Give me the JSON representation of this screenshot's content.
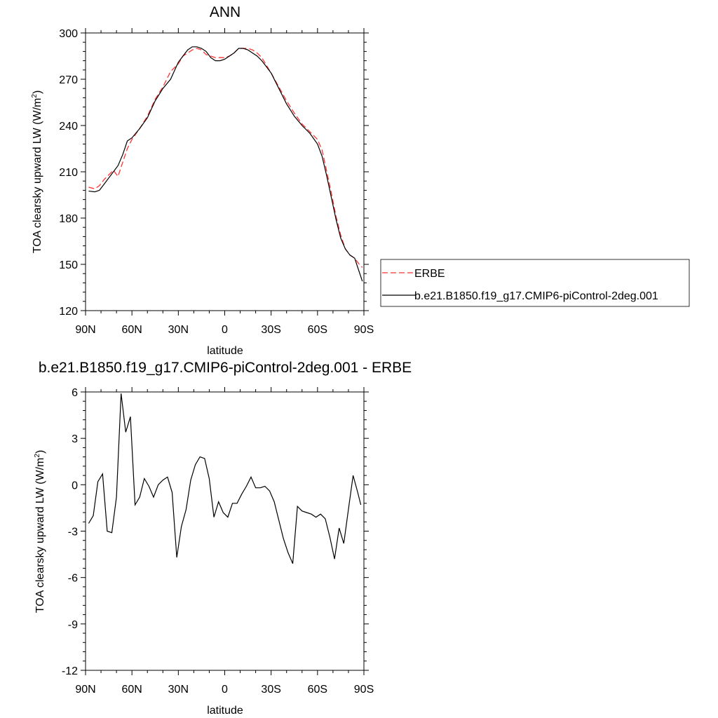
{
  "chart_data": [
    {
      "type": "line",
      "title": "ANN",
      "xlabel": "latitude",
      "ylabel": "TOA clearsky upward LW (W/m",
      "ylabel_sup": "2",
      "ylabel_close": ")",
      "xlim": [
        90,
        -90
      ],
      "ylim": [
        120,
        300
      ],
      "xticks": [
        90,
        60,
        30,
        0,
        -30,
        -60,
        -90
      ],
      "xtick_labels": [
        "90N",
        "60N",
        "30N",
        "0",
        "30S",
        "60S",
        "90S"
      ],
      "yticks": [
        120,
        150,
        180,
        210,
        240,
        270,
        300
      ],
      "ytick_labels": [
        "120",
        "150",
        "180",
        "210",
        "240",
        "270",
        "300"
      ],
      "grid": false,
      "legend_position": "right, outside",
      "series": [
        {
          "name": "ERBE",
          "color": "#ff3333",
          "dash": "dashed",
          "x": [
            88,
            84,
            81,
            78,
            75,
            72,
            69,
            66,
            63,
            60,
            55,
            50,
            45,
            40,
            35,
            30,
            27,
            24,
            21,
            18,
            15,
            12,
            9,
            6,
            3,
            0,
            -3,
            -6,
            -9,
            -12,
            -15,
            -18,
            -21,
            -24,
            -27,
            -30,
            -35,
            -40,
            -45,
            -50,
            -55,
            -60,
            -63,
            -66,
            -69,
            -72,
            -75,
            -78,
            -81,
            -84,
            -87,
            -89
          ],
          "y": [
            200,
            199,
            201,
            205,
            208,
            211,
            207,
            216,
            225,
            231,
            238,
            246,
            257,
            265,
            275,
            280,
            285,
            287,
            289,
            290,
            289,
            286,
            285,
            284,
            284,
            284,
            285,
            287,
            290,
            290,
            290,
            289,
            287,
            284,
            279,
            274,
            265,
            256,
            248,
            241,
            236,
            231,
            224,
            210,
            196,
            181,
            169,
            160,
            156,
            154,
            150,
            148
          ]
        },
        {
          "name": "b.e21.B1850.f19_g17.CMIP6-piControl-2deg.001",
          "color": "#000000",
          "dash": "solid",
          "x": [
            88,
            84,
            81,
            78,
            75,
            72,
            69,
            66,
            63,
            60,
            55,
            50,
            45,
            40,
            35,
            30,
            27,
            24,
            21,
            18,
            15,
            12,
            9,
            6,
            3,
            0,
            -3,
            -6,
            -9,
            -12,
            -15,
            -18,
            -21,
            -24,
            -27,
            -30,
            -35,
            -40,
            -45,
            -50,
            -55,
            -60,
            -63,
            -66,
            -69,
            -72,
            -75,
            -78,
            -81,
            -84,
            -87,
            -89
          ],
          "y": [
            197.5,
            197,
            198,
            202,
            206,
            210,
            214,
            221,
            230,
            232,
            238,
            245,
            256,
            264,
            270,
            281,
            285,
            289,
            291,
            291,
            290,
            288,
            284,
            282,
            282,
            283,
            285,
            287,
            290,
            290,
            289,
            287,
            285,
            282,
            278,
            274,
            264,
            254,
            246,
            240,
            235,
            228,
            220,
            207,
            193,
            179,
            167,
            160,
            156,
            154,
            145,
            139
          ]
        }
      ]
    },
    {
      "type": "line",
      "title": "b.e21.B1850.f19_g17.CMIP6-piControl-2deg.001 - ERBE",
      "xlabel": "latitude",
      "ylabel": "TOA clearsky upward LW (W/m",
      "ylabel_sup": "2",
      "ylabel_close": ")",
      "xlim": [
        90,
        -90
      ],
      "ylim": [
        -12,
        6
      ],
      "xticks": [
        90,
        60,
        30,
        0,
        -30,
        -60,
        -90
      ],
      "xtick_labels": [
        "90N",
        "60N",
        "30N",
        "0",
        "30S",
        "60S",
        "90S"
      ],
      "yticks": [
        -12,
        -9,
        -6,
        -3,
        0,
        3,
        6
      ],
      "ytick_labels": [
        "-12",
        "-9",
        "-6",
        "-3",
        "0",
        "3",
        "6"
      ],
      "grid": false,
      "series": [
        {
          "color": "#000000",
          "dash": "solid",
          "x": [
            88,
            85,
            82,
            79,
            76,
            73,
            70,
            67,
            64,
            61,
            58,
            55,
            52,
            49,
            46,
            43,
            40,
            37,
            34,
            31,
            28,
            25,
            22,
            19,
            16,
            13,
            10,
            7,
            4,
            1,
            -2,
            -5,
            -8,
            -11,
            -14,
            -17,
            -20,
            -23,
            -26,
            -29,
            -32,
            -35,
            -38,
            -41,
            -44,
            -47,
            -50,
            -53,
            -56,
            -59,
            -62,
            -65,
            -68,
            -71,
            -74,
            -77,
            -80,
            -83,
            -86,
            -88
          ],
          "y": [
            -2.5,
            -2,
            0.2,
            0.7,
            -3,
            -3.1,
            -0.8,
            5.9,
            3.4,
            4.4,
            -1.3,
            -0.8,
            0.4,
            -0.1,
            -0.8,
            0,
            0.3,
            0.5,
            -0.5,
            -4.7,
            -2.7,
            -1.6,
            0.3,
            1.3,
            1.8,
            1.7,
            0.4,
            -2.1,
            -1.1,
            -1.8,
            -2.1,
            -1.2,
            -1.2,
            -0.6,
            -0.1,
            0.5,
            -0.2,
            -0.2,
            -0.1,
            -0.4,
            -1.1,
            -2.3,
            -3.5,
            -4.4,
            -5.1,
            -1.4,
            -1.7,
            -1.8,
            -1.9,
            -2.1,
            -1.9,
            -2.2,
            -3.4,
            -4.8,
            -2.8,
            -3.8,
            -1.6,
            0.6,
            -0.5,
            -1.3
          ]
        }
      ]
    }
  ]
}
